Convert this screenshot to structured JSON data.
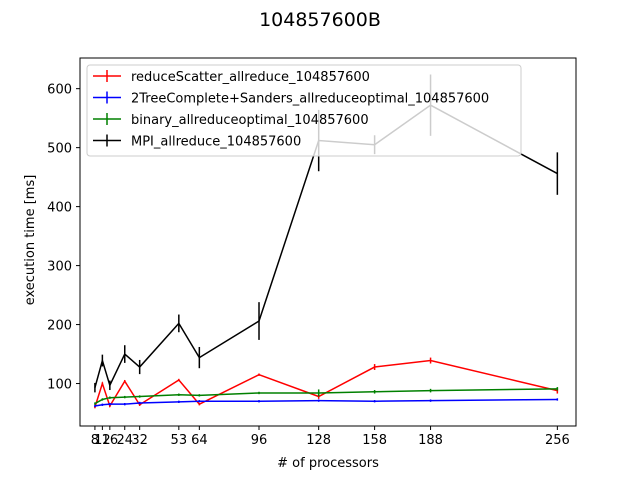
{
  "chart_data": {
    "type": "line",
    "title": "104857600B",
    "xlabel": "# of processors",
    "ylabel": "execution time [ms]",
    "xlim": [
      0,
      266
    ],
    "ylim": [
      28,
      652
    ],
    "x_ticks": [
      8,
      12,
      16,
      24,
      32,
      53,
      64,
      96,
      128,
      158,
      188,
      256
    ],
    "x_tick_labels": [
      "8",
      "12",
      "16",
      "24",
      "32",
      "53",
      "64",
      "96",
      "128",
      "158",
      "188",
      "256"
    ],
    "y_ticks": [
      100,
      200,
      300,
      400,
      500,
      600
    ],
    "legend_position": "top-left",
    "grid": false,
    "series": [
      {
        "name": "reduceScatter_allreduce_104857600",
        "color": "#ff0000",
        "x": [
          8,
          12,
          16,
          24,
          32,
          53,
          64,
          96,
          128,
          158,
          188,
          256
        ],
        "y": [
          60,
          100,
          62,
          104,
          64,
          106,
          65,
          115,
          78,
          128,
          139,
          88
        ],
        "err": [
          2,
          2,
          2,
          2,
          2,
          2,
          2,
          2,
          4,
          5,
          5,
          5
        ]
      },
      {
        "name": "2TreeComplete+Sanders_allreduceoptimal_104857600",
        "color": "#0000ff",
        "x": [
          8,
          12,
          16,
          24,
          32,
          53,
          64,
          96,
          128,
          158,
          188,
          256
        ],
        "y": [
          62,
          64,
          65,
          65,
          67,
          69,
          70,
          70,
          71,
          70,
          71,
          73
        ],
        "err": [
          2,
          2,
          2,
          2,
          2,
          2,
          2,
          2,
          2,
          2,
          2,
          2
        ]
      },
      {
        "name": "binary_allreduceoptimal_104857600",
        "color": "#008000",
        "x": [
          8,
          12,
          16,
          24,
          32,
          53,
          64,
          96,
          128,
          158,
          188,
          256
        ],
        "y": [
          66,
          73,
          76,
          77,
          78,
          81,
          80,
          84,
          84,
          86,
          88,
          91
        ],
        "err": [
          2,
          2,
          2,
          2,
          2,
          2,
          2,
          2,
          6,
          3,
          3,
          3
        ]
      },
      {
        "name": "MPI_allreduce_104857600",
        "color": "#000000",
        "x": [
          8,
          12,
          16,
          24,
          32,
          53,
          64,
          96,
          128,
          158,
          188,
          256
        ],
        "y": [
          93,
          139,
          97,
          150,
          128,
          202,
          144,
          206,
          512,
          505,
          572,
          456
        ],
        "err": [
          8,
          10,
          8,
          15,
          12,
          15,
          18,
          32,
          52,
          16,
          52,
          36
        ]
      }
    ]
  }
}
